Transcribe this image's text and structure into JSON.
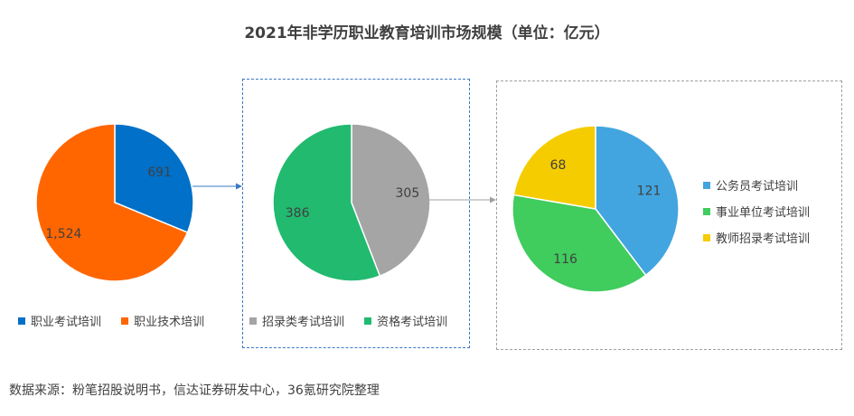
{
  "title": "2021年非学历职业教育培训市场规模（单位：亿元）",
  "source": "数据来源：粉笔招股说明书，信达证券研发中心，36氪研究院整理",
  "chart_data": [
    {
      "type": "pie",
      "labels": [
        "职业考试培训",
        "职业技术培训"
      ],
      "values": [
        691,
        1524
      ],
      "value_labels": [
        "691",
        "1,524"
      ],
      "colors": [
        "#0070c8",
        "#ff6600"
      ],
      "legend_position": "bottom"
    },
    {
      "type": "pie",
      "labels": [
        "招录类考试培训",
        "资格考试培训"
      ],
      "values": [
        305,
        386
      ],
      "value_labels": [
        "305",
        "386"
      ],
      "colors": [
        "#a5a5a5",
        "#21ba6f"
      ],
      "legend_position": "bottom"
    },
    {
      "type": "pie",
      "labels": [
        "公务员考试培训",
        "事业单位考试培训",
        "教师招录考试培训"
      ],
      "values": [
        121,
        116,
        68
      ],
      "value_labels": [
        "121",
        "116",
        "68"
      ],
      "colors": [
        "#42a5e0",
        "#41cc5e",
        "#f5cc00"
      ],
      "legend_position": "right"
    }
  ]
}
